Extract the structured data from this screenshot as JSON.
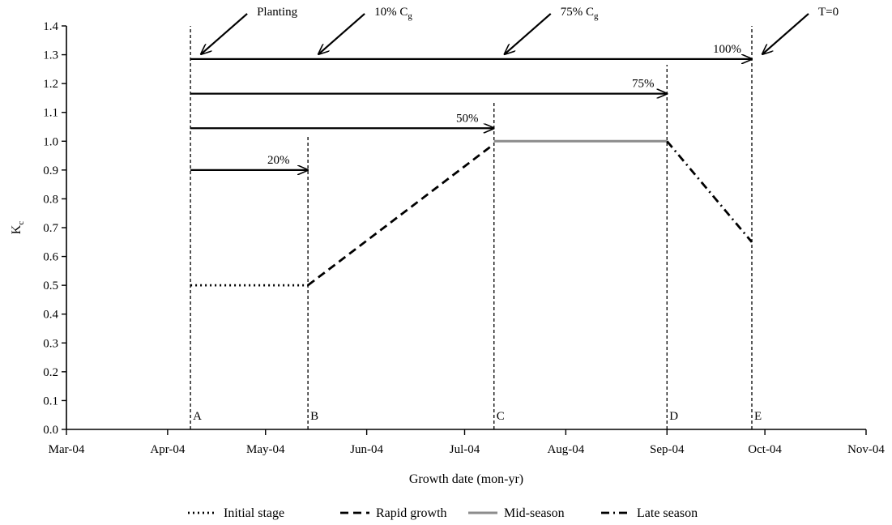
{
  "chart_data": {
    "type": "line",
    "title": "",
    "xlabel": "Growth date (mon-yr)",
    "ylabel_main": "K",
    "ylabel_sub": "c",
    "xlim": [
      "2004-03-01",
      "2004-11-01"
    ],
    "ylim": [
      0,
      1.4
    ],
    "x_ticks": [
      {
        "date": "2004-03-01",
        "label": "Mar-04"
      },
      {
        "date": "2004-04-01",
        "label": "Apr-04"
      },
      {
        "date": "2004-05-01",
        "label": "May-04"
      },
      {
        "date": "2004-06-01",
        "label": "Jun-04"
      },
      {
        "date": "2004-07-01",
        "label": "Jul-04"
      },
      {
        "date": "2004-08-01",
        "label": "Aug-04"
      },
      {
        "date": "2004-09-01",
        "label": "Sep-04"
      },
      {
        "date": "2004-10-01",
        "label": "Oct-04"
      },
      {
        "date": "2004-11-01",
        "label": "Nov-04"
      }
    ],
    "y_ticks": [
      "0.0",
      "0.1",
      "0.2",
      "0.3",
      "0.4",
      "0.5",
      "0.6",
      "0.7",
      "0.8",
      "0.9",
      "1.0",
      "1.1",
      "1.2",
      "1.3",
      "1.4"
    ],
    "stage_lines": [
      {
        "label": "A",
        "date": "2004-04-08"
      },
      {
        "label": "B",
        "date": "2004-05-14"
      },
      {
        "label": "C",
        "date": "2004-07-10"
      },
      {
        "label": "D",
        "date": "2004-09-01"
      },
      {
        "label": "E",
        "date": "2004-09-27"
      }
    ],
    "series": [
      {
        "name": "Initial stage",
        "style": "dotted",
        "color": "#000000",
        "points": [
          {
            "x": "2004-04-08",
            "y": 0.5
          },
          {
            "x": "2004-05-14",
            "y": 0.5
          }
        ]
      },
      {
        "name": "Rapid growth",
        "style": "dashed",
        "color": "#000000",
        "points": [
          {
            "x": "2004-05-14",
            "y": 0.5
          },
          {
            "x": "2004-07-10",
            "y": 0.99
          }
        ]
      },
      {
        "name": "Mid-season",
        "style": "solid",
        "color": "#8c8c8c",
        "points": [
          {
            "x": "2004-07-10",
            "y": 1.0
          },
          {
            "x": "2004-09-01",
            "y": 1.0
          }
        ]
      },
      {
        "name": "Late season",
        "style": "dashdot",
        "color": "#000000",
        "points": [
          {
            "x": "2004-09-01",
            "y": 1.0
          },
          {
            "x": "2004-09-27",
            "y": 0.65
          }
        ]
      }
    ],
    "duration_arrows": [
      {
        "label": "20%",
        "y": 0.9,
        "from": "2004-04-08",
        "to": "2004-05-14"
      },
      {
        "label": "50%",
        "y": 1.045,
        "from": "2004-04-08",
        "to": "2004-07-10"
      },
      {
        "label": "75%",
        "y": 1.165,
        "from": "2004-04-08",
        "to": "2004-09-01"
      },
      {
        "label": "100%",
        "y": 1.285,
        "from": "2004-04-08",
        "to": "2004-09-27"
      }
    ],
    "event_annotations": [
      {
        "label": "Planting",
        "sub": "",
        "date": "2004-04-08"
      },
      {
        "label": "10% C",
        "sub": "g",
        "date": "2004-05-14"
      },
      {
        "label": "75% C",
        "sub": "g",
        "date": "2004-07-10"
      },
      {
        "label": "T=0",
        "sub": "",
        "date": "2004-09-27"
      }
    ],
    "legend_position": "bottom",
    "grid": false
  }
}
